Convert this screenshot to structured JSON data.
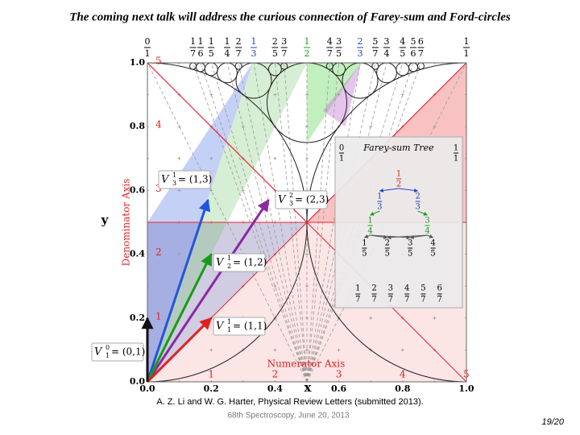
{
  "title": "The coming next talk will address the curious connection of Farey-sum and Ford-circles",
  "top_fractions": [
    [
      "0",
      "1"
    ],
    [
      "1",
      "7"
    ],
    [
      "1",
      "6"
    ],
    [
      "1",
      "5"
    ],
    [
      "1",
      "4"
    ],
    [
      "2",
      "7"
    ],
    [
      "1",
      "3"
    ],
    [
      "2",
      "5"
    ],
    [
      "3",
      "7"
    ],
    [
      "1",
      "2"
    ],
    [
      "4",
      "7"
    ],
    [
      "3",
      "5"
    ],
    [
      "2",
      "3"
    ],
    [
      "5",
      "7"
    ],
    [
      "3",
      "4"
    ],
    [
      "4",
      "5"
    ],
    [
      "5",
      "6"
    ],
    [
      "6",
      "7"
    ],
    [
      "1",
      "1"
    ]
  ],
  "y_ticks": [
    "0.0",
    "0.2",
    "0.4",
    "0.6",
    "0.8",
    "1.0"
  ],
  "x_ticks": [
    "0.0",
    "0.2",
    "0.4",
    "0.6",
    "0.8",
    "1.0"
  ],
  "denominator_marks": [
    "1",
    "2",
    "3",
    "4",
    "5"
  ],
  "numerator_marks": [
    "1",
    "2",
    "3",
    "4",
    "5"
  ],
  "x_axis_label": "Numerator Axis",
  "y_axis_label": "Denominator Axis",
  "x_symbol": "x",
  "y_symbol": "y",
  "vectors": [
    {
      "symbol": "V",
      "num": "1",
      "den": "3",
      "text": "= (1,3)"
    },
    {
      "symbol": "V",
      "num": "2",
      "den": "3",
      "text": "= (2,3)"
    },
    {
      "symbol": "V",
      "num": "1",
      "den": "2",
      "text": "= (1,2)"
    },
    {
      "symbol": "V",
      "num": "1",
      "den": "1",
      "text": "= (1,1)"
    },
    {
      "symbol": "V",
      "num": "0",
      "den": "1",
      "text": "= (0,1)"
    }
  ],
  "tree": {
    "title": "Farey-sum Tree",
    "levels": [
      [
        [
          "0",
          "1"
        ],
        [
          "1",
          "1"
        ]
      ],
      [
        [
          "1",
          "2"
        ]
      ],
      [
        [
          "1",
          "3"
        ],
        [
          "2",
          "3"
        ]
      ],
      [
        [
          "1",
          "4"
        ],
        [
          "3",
          "4"
        ]
      ],
      [
        [
          "1",
          "5"
        ],
        [
          "2",
          "5"
        ],
        [
          "3",
          "5"
        ],
        [
          "4",
          "5"
        ]
      ]
    ],
    "bottom_row": [
      [
        "1",
        "7"
      ],
      [
        "2",
        "7"
      ],
      [
        "3",
        "7"
      ],
      [
        "4",
        "7"
      ],
      [
        "5",
        "7"
      ],
      [
        "6",
        "7"
      ]
    ]
  },
  "citation": "A. Z. Li and W. G. Harter, Physical Review Letters (submitted 2013).",
  "footer": "68th Spectroscopy, June 20, 2013",
  "page_number": "19/20"
}
